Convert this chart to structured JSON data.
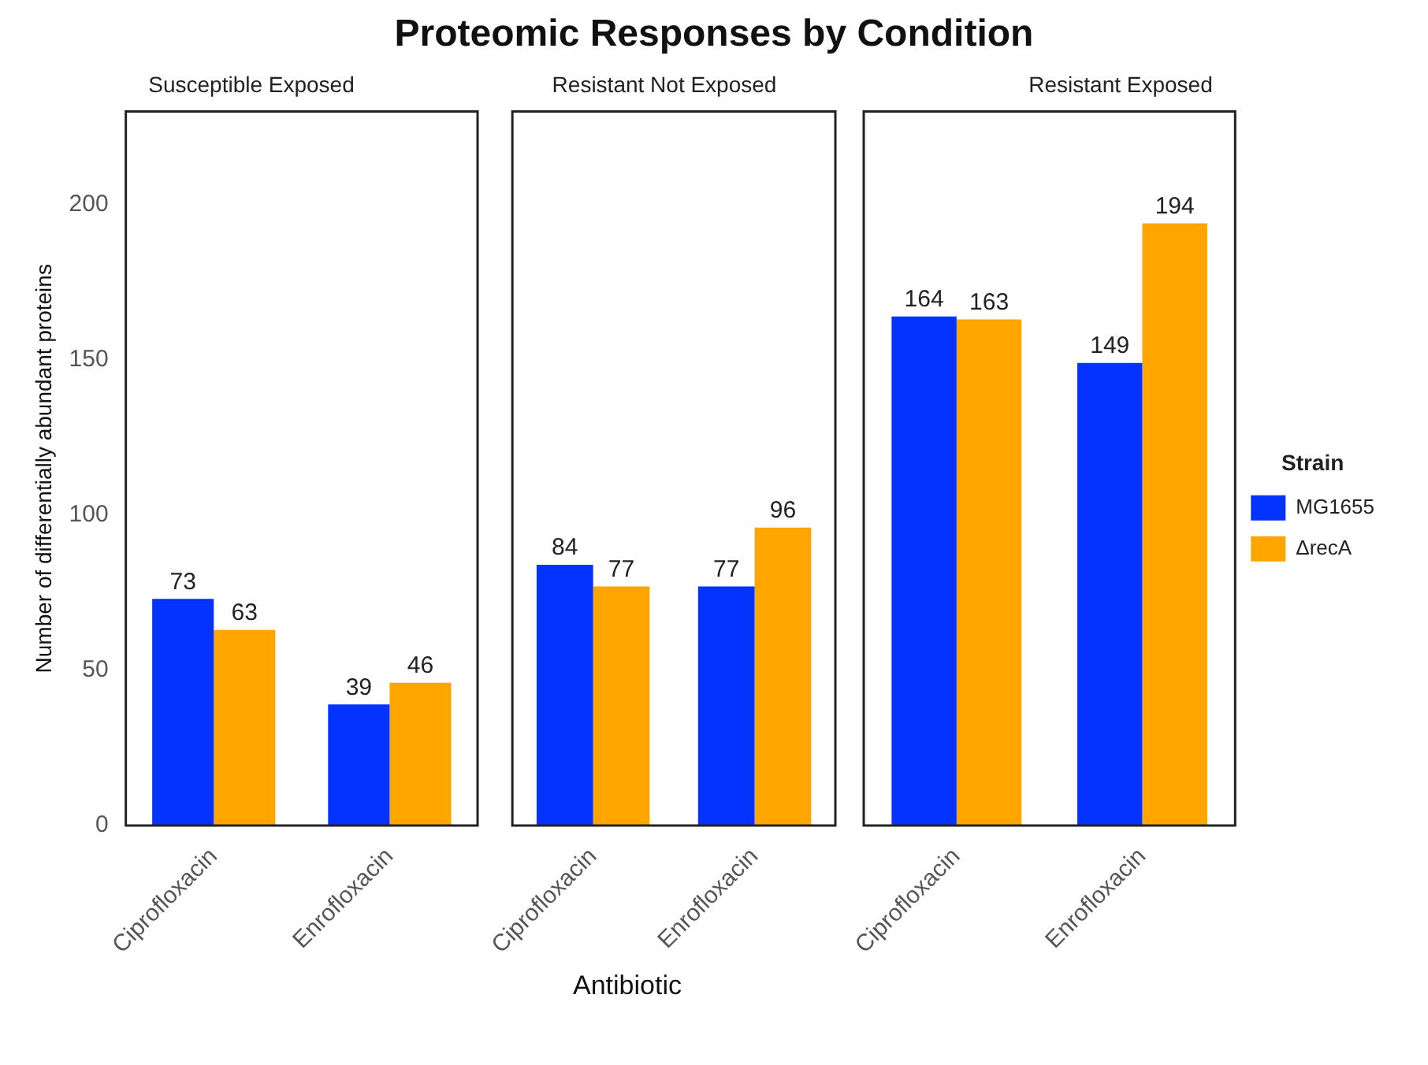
{
  "chart_data": [
    {
      "type": "bar",
      "title": "Proteomic Responses by Condition",
      "subtitle": "Susceptible Exposed",
      "ylabel": "Number of differentially abundant proteins",
      "categories": [
        "Ciprofloxacin",
        "Enrofloxacin"
      ],
      "series": [
        {
          "color": "#0433ff",
          "values": [
            73,
            39
          ]
        },
        {
          "color": "#ffa500",
          "values": [
            63,
            46
          ]
        }
      ],
      "data_labels": true,
      "ylim": [
        0,
        230
      ],
      "yticks": [
        0,
        50,
        100,
        150,
        200
      ]
    },
    {
      "type": "bar",
      "subtitle": "Resistant Not Exposed",
      "xlabel": "Antibiotic",
      "categories": [
        "Ciprofloxacin",
        "Enrofloxacin"
      ],
      "series": [
        {
          "color": "#0433ff",
          "values": [
            84,
            77
          ]
        },
        {
          "color": "#ffa500",
          "values": [
            77,
            96
          ]
        }
      ],
      "data_labels": true,
      "ylim": [
        0,
        230
      ],
      "yticks": [
        0,
        50,
        100,
        150,
        200
      ],
      "tick_labels": "x"
    },
    {
      "type": "bar",
      "subtitle": "Resistant Exposed",
      "categories": [
        "Ciprofloxacin",
        "Enrofloxacin"
      ],
      "series": [
        {
          "name": "MG1655",
          "color": "#0433ff",
          "values": [
            164,
            149
          ]
        },
        {
          "name": "ΔrecA",
          "color": "#ffa500",
          "values": [
            163,
            194
          ]
        }
      ],
      "data_labels": true,
      "ylim": [
        0,
        230
      ],
      "yticks": [
        0,
        50,
        100,
        150,
        200
      ],
      "tick_labels": "x",
      "legend": "right",
      "legend_title": "Strain"
    }
  ]
}
